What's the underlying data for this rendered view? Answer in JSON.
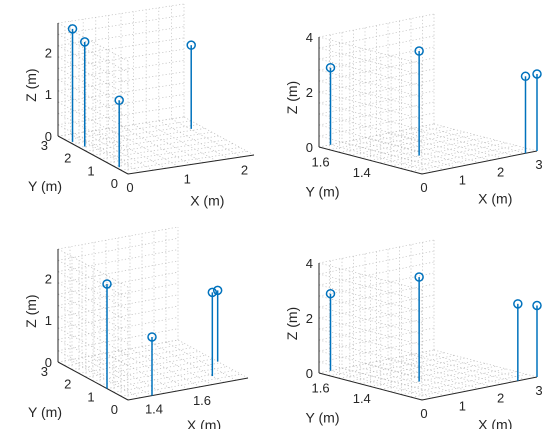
{
  "colors": {
    "series": "#0072BD",
    "axis": "#262626",
    "grid": "#bdbdbd"
  },
  "chart_data": [
    {
      "type": "stem3",
      "panel": "top-left",
      "xlabel": "X (m)",
      "ylabel": "Y (m)",
      "zlabel": "Z (m)",
      "xlim": [
        0,
        2.2
      ],
      "ylim": [
        0,
        3
      ],
      "zlim": [
        0,
        2.7
      ],
      "xticks": [
        0,
        1,
        2
      ],
      "yticks": [
        0,
        1,
        2,
        3
      ],
      "zticks": [
        0,
        1,
        2
      ],
      "points": [
        {
          "x": 0.1,
          "y": 2.1,
          "z": 2.5
        },
        {
          "x": 0.05,
          "y": 2.5,
          "z": 2.7
        },
        {
          "x": 0.05,
          "y": 0.5,
          "z": 1.6
        },
        {
          "x": 2.0,
          "y": 2.2,
          "z": 2.0
        }
      ]
    },
    {
      "type": "stem3",
      "panel": "top-right",
      "xlabel": "X (m)",
      "ylabel": "Y (m)",
      "zlabel": "Z (m)",
      "xlim": [
        0,
        3
      ],
      "ylim": [
        1.2,
        1.7
      ],
      "zlim": [
        0,
        4
      ],
      "xticks": [
        0,
        1,
        2,
        3
      ],
      "yticks": [
        1.4,
        1.6
      ],
      "zticks": [
        0,
        2,
        4
      ],
      "points": [
        {
          "x": 0.3,
          "y": 1.7,
          "z": 2.8
        },
        {
          "x": 1.0,
          "y": 1.4,
          "z": 3.8
        },
        {
          "x": 2.7,
          "y": 1.2,
          "z": 2.8
        },
        {
          "x": 3.0,
          "y": 1.2,
          "z": 2.8
        }
      ]
    },
    {
      "type": "stem3",
      "panel": "bottom-left",
      "xlabel": "X (m)",
      "ylabel": "Y (m)",
      "zlabel": "Z (m)",
      "xlim": [
        1.3,
        1.8
      ],
      "ylim": [
        0,
        3
      ],
      "zlim": [
        0,
        2.7
      ],
      "xticks": [
        1.4,
        1.6
      ],
      "yticks": [
        0,
        1,
        2,
        3
      ],
      "zticks": [
        0,
        1,
        2
      ],
      "points": [
        {
          "x": 1.3,
          "y": 0.9,
          "z": 2.5
        },
        {
          "x": 1.4,
          "y": 0.0,
          "z": 1.4
        },
        {
          "x": 1.7,
          "y": 0.5,
          "z": 2.0
        },
        {
          "x": 1.8,
          "y": 1.3,
          "z": 1.7
        }
      ]
    },
    {
      "type": "stem3",
      "panel": "bottom-right",
      "xlabel": "X (m)",
      "ylabel": "Y (m)",
      "zlabel": "Z (m)",
      "xlim": [
        0,
        3
      ],
      "ylim": [
        1.2,
        1.7
      ],
      "zlim": [
        0,
        4
      ],
      "xticks": [
        0,
        1,
        2,
        3
      ],
      "yticks": [
        1.4,
        1.6
      ],
      "zticks": [
        0,
        2,
        4
      ],
      "points": [
        {
          "x": 0.3,
          "y": 1.7,
          "z": 2.8
        },
        {
          "x": 1.0,
          "y": 1.4,
          "z": 3.8
        },
        {
          "x": 2.5,
          "y": 1.2,
          "z": 2.8
        },
        {
          "x": 3.0,
          "y": 1.2,
          "z": 2.6
        }
      ]
    }
  ]
}
